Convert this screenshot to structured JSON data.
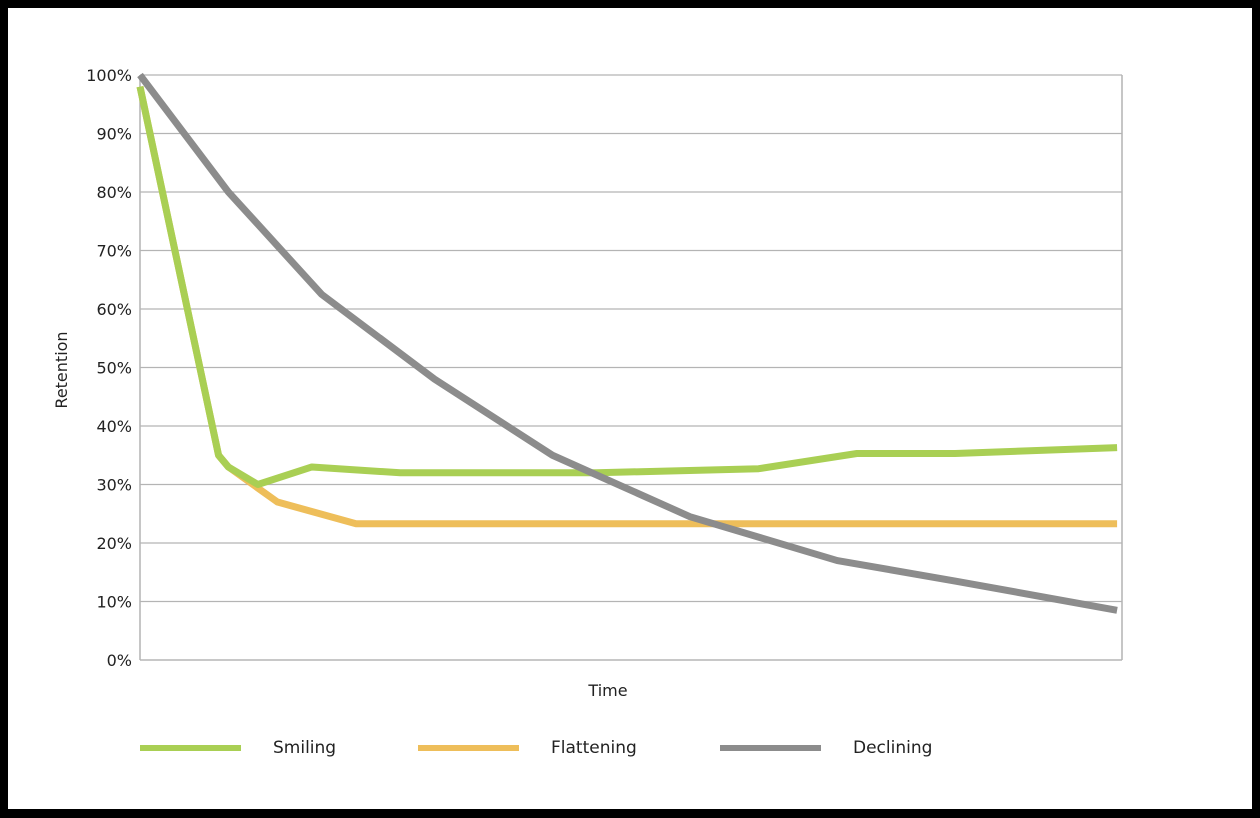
{
  "chart_data": {
    "type": "line",
    "title": "",
    "xlabel": "Time",
    "ylabel": "Retention",
    "ylim": [
      0,
      100
    ],
    "yticks": [
      "0%",
      "10%",
      "20%",
      "30%",
      "40%",
      "50%",
      "60%",
      "70%",
      "80%",
      "90%",
      "100%"
    ],
    "grid": true,
    "legend_position": "bottom",
    "x_unlabeled": true,
    "series": [
      {
        "name": "Smiling",
        "color": "#A9CF54",
        "points": [
          [
            0,
            98
          ],
          [
            8,
            35
          ],
          [
            9,
            33
          ],
          [
            12,
            30
          ],
          [
            17.5,
            33
          ],
          [
            26.5,
            32
          ],
          [
            46.5,
            32
          ],
          [
            63,
            32.7
          ],
          [
            73,
            35.3
          ],
          [
            83,
            35.3
          ],
          [
            99.5,
            36.3
          ]
        ]
      },
      {
        "name": "Flattening",
        "color": "#EEBE5A",
        "points": [
          [
            0,
            98
          ],
          [
            8,
            35
          ],
          [
            9,
            33
          ],
          [
            14,
            27
          ],
          [
            22,
            23.3
          ],
          [
            99.5,
            23.3
          ]
        ]
      },
      {
        "name": "Declining",
        "color": "#8C8C8C",
        "points": [
          [
            0,
            100
          ],
          [
            9,
            80
          ],
          [
            18.5,
            62.5
          ],
          [
            30,
            48
          ],
          [
            42,
            35
          ],
          [
            56,
            24.5
          ],
          [
            71,
            17
          ],
          [
            83,
            13.5
          ],
          [
            99.5,
            8.5
          ]
        ]
      }
    ]
  },
  "legend": {
    "items": [
      {
        "label": "Smiling",
        "color": "#A9CF54"
      },
      {
        "label": "Flattening",
        "color": "#EEBE5A"
      },
      {
        "label": "Declining",
        "color": "#8C8C8C"
      }
    ]
  }
}
